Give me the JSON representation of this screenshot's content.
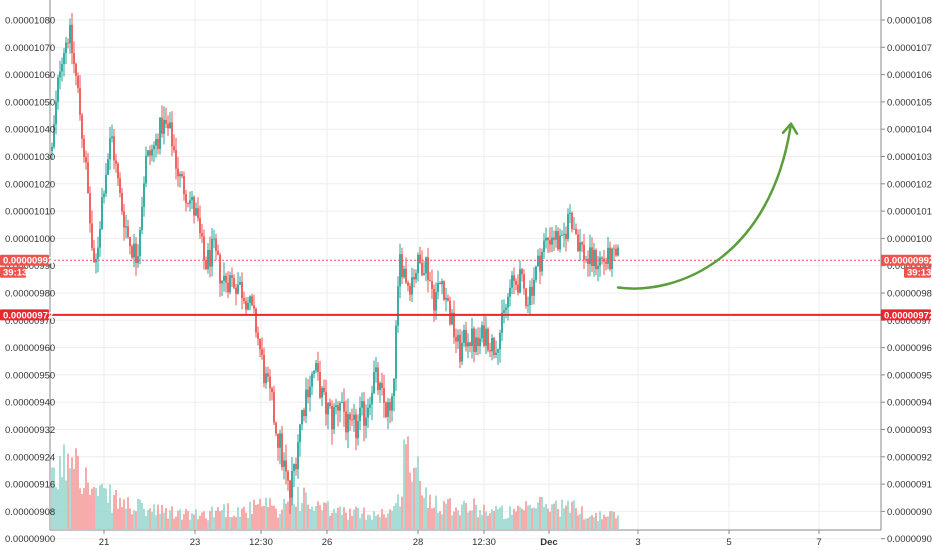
{
  "chart_data": {
    "type": "candlestick",
    "y_range": [
      8.95e-06,
      1.084e-05
    ],
    "y_ticks": [
      "0.00001080",
      "0.00001070",
      "0.00001060",
      "0.00001050",
      "0.00001040",
      "0.00001030",
      "0.00001020",
      "0.00001010",
      "0.00001000",
      "0.00000990",
      "0.00000980",
      "0.00000970",
      "0.00000960",
      "0.00000950",
      "0.00000940",
      "0.00000932",
      "0.00000924",
      "0.00000916",
      "0.00000908",
      "0.00000900"
    ],
    "x_ticks": [
      "21",
      "23",
      "12:30",
      "26",
      "28",
      "12:30",
      "Dec",
      "3",
      "5",
      "7"
    ],
    "current_price_label": "0.00000992",
    "countdown_label": "39:13",
    "support_label": "0.00000972",
    "colors": {
      "up": "#26a69a",
      "down": "#ef5350",
      "up_volume": "#9fd8d2",
      "down_volume": "#f5a3a1",
      "support_line": "#e8262b",
      "current_line": "#ef5350",
      "arrow": "#5a9e3a",
      "grid": "#eeeeee"
    },
    "price_path": [
      [
        0,
        1032
      ],
      [
        0.015,
        1066
      ],
      [
        0.03,
        1076
      ],
      [
        0.045,
        1055
      ],
      [
        0.06,
        1025
      ],
      [
        0.075,
        985
      ],
      [
        0.09,
        1018
      ],
      [
        0.105,
        1038
      ],
      [
        0.12,
        1015
      ],
      [
        0.135,
        1000
      ],
      [
        0.15,
        993
      ],
      [
        0.165,
        1028
      ],
      [
        0.18,
        1033
      ],
      [
        0.195,
        1042
      ],
      [
        0.21,
        1038
      ],
      [
        0.225,
        1022
      ],
      [
        0.24,
        1016
      ],
      [
        0.255,
        1008
      ],
      [
        0.27,
        990
      ],
      [
        0.285,
        996
      ],
      [
        0.3,
        985
      ],
      [
        0.315,
        985
      ],
      [
        0.33,
        983
      ],
      [
        0.345,
        978
      ],
      [
        0.36,
        968
      ],
      [
        0.375,
        950
      ],
      [
        0.39,
        938
      ],
      [
        0.405,
        925
      ],
      [
        0.42,
        912
      ],
      [
        0.435,
        930
      ],
      [
        0.45,
        945
      ],
      [
        0.465,
        952
      ],
      [
        0.48,
        940
      ],
      [
        0.495,
        935
      ],
      [
        0.51,
        942
      ],
      [
        0.525,
        930
      ],
      [
        0.54,
        933
      ],
      [
        0.555,
        938
      ],
      [
        0.57,
        950
      ],
      [
        0.585,
        940
      ],
      [
        0.6,
        935
      ],
      [
        0.615,
        993
      ],
      [
        0.63,
        983
      ],
      [
        0.645,
        990
      ],
      [
        0.66,
        992
      ],
      [
        0.675,
        978
      ],
      [
        0.69,
        985
      ],
      [
        0.705,
        970
      ],
      [
        0.72,
        958
      ],
      [
        0.735,
        965
      ],
      [
        0.75,
        960
      ],
      [
        0.765,
        966
      ],
      [
        0.78,
        960
      ],
      [
        0.795,
        968
      ],
      [
        0.81,
        982
      ],
      [
        0.825,
        985
      ],
      [
        0.84,
        978
      ],
      [
        0.855,
        988
      ],
      [
        0.87,
        998
      ],
      [
        0.885,
        1002
      ],
      [
        0.9,
        996
      ],
      [
        0.915,
        1010
      ],
      [
        0.93,
        999
      ],
      [
        0.945,
        992
      ]
    ],
    "volume_path": [
      [
        0,
        0.38
      ],
      [
        0.02,
        0.55
      ],
      [
        0.04,
        0.85
      ],
      [
        0.06,
        0.42
      ],
      [
        0.08,
        0.3
      ],
      [
        0.1,
        0.28
      ],
      [
        0.14,
        0.2
      ],
      [
        0.18,
        0.16
      ],
      [
        0.22,
        0.14
      ],
      [
        0.26,
        0.12
      ],
      [
        0.3,
        0.18
      ],
      [
        0.34,
        0.16
      ],
      [
        0.38,
        0.22
      ],
      [
        0.4,
        0.12
      ],
      [
        0.42,
        0.35
      ],
      [
        0.44,
        0.28
      ],
      [
        0.46,
        0.2
      ],
      [
        0.5,
        0.16
      ],
      [
        0.54,
        0.14
      ],
      [
        0.58,
        0.14
      ],
      [
        0.61,
        0.18
      ],
      [
        0.625,
        0.75
      ],
      [
        0.64,
        0.55
      ],
      [
        0.66,
        0.3
      ],
      [
        0.68,
        0.26
      ],
      [
        0.7,
        0.22
      ],
      [
        0.74,
        0.2
      ],
      [
        0.78,
        0.16
      ],
      [
        0.82,
        0.14
      ],
      [
        0.86,
        0.22
      ],
      [
        0.9,
        0.2
      ],
      [
        0.93,
        0.18
      ],
      [
        0.945,
        0.12
      ]
    ],
    "volume_markers": [
      "0.00000908",
      "0.00000900"
    ],
    "forecast_arrow": {
      "direction": "up",
      "from_price": 9.82e-06,
      "to_price": 1.042e-05
    }
  }
}
